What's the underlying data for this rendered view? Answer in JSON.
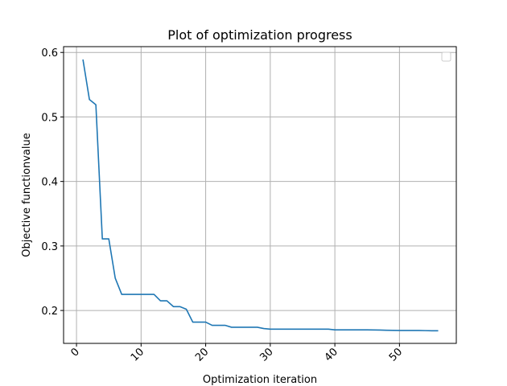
{
  "chart_data": {
    "type": "line",
    "title": "Plot of optimization progress",
    "xlabel": "Optimization iteration",
    "ylabel": "Objective functionvalue",
    "xlim": [
      -2,
      58.8
    ],
    "ylim": [
      0.149,
      0.609
    ],
    "xticks": [
      0,
      10,
      20,
      30,
      40,
      50
    ],
    "yticks": [
      0.2,
      0.3,
      0.4,
      0.5,
      0.6
    ],
    "xtick_labels": [
      "0",
      "10",
      "20",
      "30",
      "40",
      "50"
    ],
    "ytick_labels": [
      "0.2",
      "0.3",
      "0.4",
      "0.5",
      "0.6"
    ],
    "xtick_rotation": "45deg",
    "grid": true,
    "legend": {
      "placement": "top-right",
      "entries": []
    },
    "series": [
      {
        "color": "#1f77b4",
        "x": [
          1,
          2,
          3,
          4,
          5,
          6,
          7,
          8,
          9,
          10,
          11,
          12,
          13,
          14,
          15,
          16,
          17,
          18,
          19,
          20,
          21,
          22,
          23,
          24,
          25,
          26,
          27,
          28,
          29,
          30,
          31,
          32,
          33,
          34,
          35,
          36,
          37,
          38,
          39,
          40,
          41,
          42,
          43,
          44,
          45,
          46,
          47,
          48,
          49,
          50,
          51,
          52,
          53,
          54,
          55,
          56
        ],
        "y": [
          0.589,
          0.527,
          0.519,
          0.311,
          0.311,
          0.25,
          0.225,
          0.225,
          0.225,
          0.225,
          0.225,
          0.225,
          0.215,
          0.215,
          0.206,
          0.206,
          0.202,
          0.182,
          0.182,
          0.182,
          0.177,
          0.177,
          0.177,
          0.174,
          0.174,
          0.174,
          0.174,
          0.174,
          0.172,
          0.171,
          0.171,
          0.171,
          0.171,
          0.171,
          0.171,
          0.171,
          0.171,
          0.171,
          0.171,
          0.17,
          0.17,
          0.17,
          0.17,
          0.17,
          0.17,
          0.1698,
          0.1696,
          0.1694,
          0.1692,
          0.169,
          0.169,
          0.169,
          0.169,
          0.1688,
          0.1686,
          0.1686
        ]
      }
    ]
  }
}
